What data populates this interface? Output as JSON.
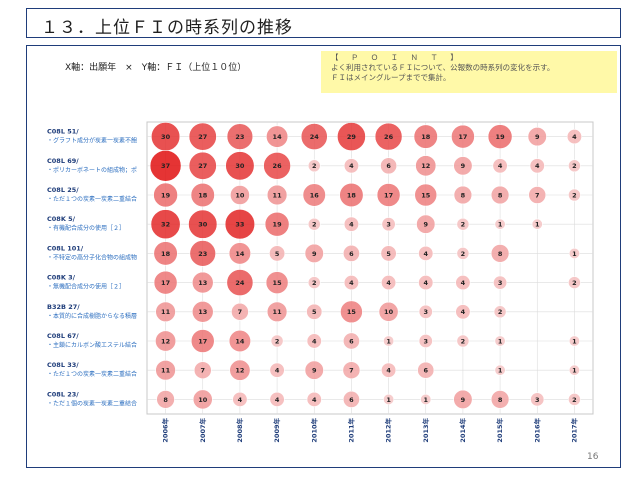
{
  "title": "１３．上位ＦＩの時系列の推移",
  "axes_label": "X軸：出願年　×　Y軸：ＦＩ（上位１０位）",
  "point": {
    "title": "【 Ｐ Ｏ Ｉ Ｎ Ｔ 】",
    "line1": "よく利用されているＦＩについて、公報数の時系列の変化を示す。",
    "line2": "ＦＩはメイングループまでで集計。"
  },
  "page_number": "16",
  "colors": {
    "bubble_max": "#e01010",
    "bubble_min": "#f6c9c9",
    "frame": "#1f3d7a"
  },
  "chart_data": {
    "type": "bubble",
    "x": [
      "2006年",
      "2007年",
      "2008年",
      "2009年",
      "2010年",
      "2011年",
      "2012年",
      "2013年",
      "2014年",
      "2015年",
      "2016年",
      "2017年"
    ],
    "rows": [
      {
        "code": "C08L 51/",
        "desc": "・グラフト成分が炭素一炭素不飽",
        "values": [
          30,
          27,
          23,
          14,
          24,
          29,
          26,
          18,
          17,
          19,
          9,
          4
        ]
      },
      {
        "code": "C08L 69/",
        "desc": "・ポリカーボネートの組成物；ポ",
        "values": [
          37,
          27,
          30,
          26,
          2,
          4,
          6,
          12,
          9,
          4,
          4,
          2
        ]
      },
      {
        "code": "C08L 25/",
        "desc": "・ただ１つの炭素一炭素二重結合",
        "values": [
          19,
          18,
          10,
          11,
          16,
          18,
          17,
          15,
          8,
          8,
          7,
          2
        ]
      },
      {
        "code": "C08K 5/",
        "desc": "・有機配合成分の使用［２］",
        "values": [
          32,
          30,
          33,
          19,
          2,
          4,
          3,
          9,
          2,
          1,
          1,
          null
        ]
      },
      {
        "code": "C08L 101/",
        "desc": "・不特定の高分子化合物の組成物",
        "values": [
          18,
          23,
          14,
          5,
          9,
          6,
          5,
          4,
          2,
          8,
          null,
          1
        ]
      },
      {
        "code": "C08K 3/",
        "desc": "・無機配合成分の使用［２］",
        "values": [
          17,
          13,
          24,
          15,
          2,
          4,
          4,
          4,
          4,
          3,
          null,
          2
        ]
      },
      {
        "code": "B32B 27/",
        "desc": "・本質的に合成樹脂からなる積層",
        "values": [
          11,
          13,
          7,
          11,
          5,
          15,
          10,
          3,
          4,
          2,
          null,
          null
        ]
      },
      {
        "code": "C08L 67/",
        "desc": "・主鎖にカルボン酸エステル結合",
        "values": [
          12,
          17,
          14,
          2,
          4,
          6,
          1,
          3,
          2,
          1,
          null,
          1
        ]
      },
      {
        "code": "C08L 33/",
        "desc": "・ただ１つの炭素一炭素二重結合",
        "values": [
          11,
          7,
          12,
          4,
          9,
          7,
          4,
          6,
          null,
          1,
          null,
          1
        ]
      },
      {
        "code": "C08L 23/",
        "desc": "・ただ１個の炭素一炭素二重結合",
        "values": [
          8,
          10,
          4,
          4,
          4,
          6,
          1,
          1,
          9,
          8,
          3,
          2
        ]
      }
    ],
    "grid": true
  }
}
